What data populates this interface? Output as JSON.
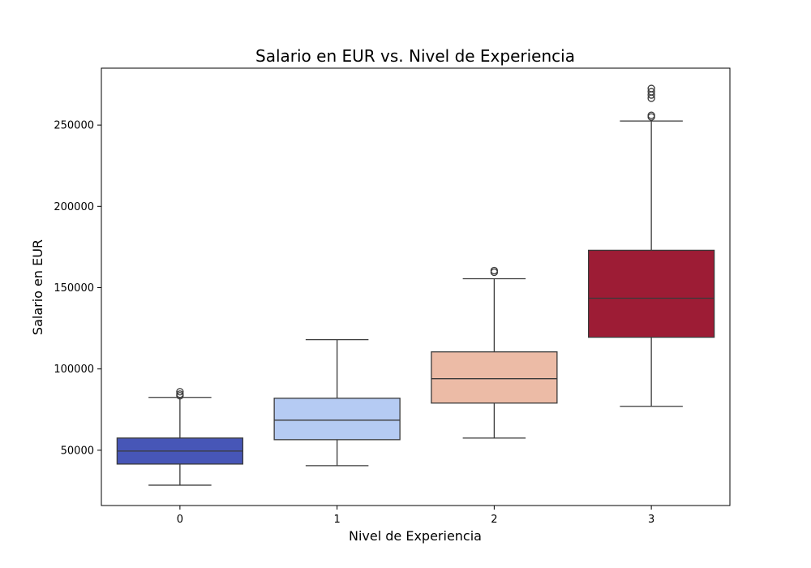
{
  "chart_data": {
    "type": "boxplot",
    "title": "Salario en EUR vs. Nivel de Experiencia",
    "xlabel": "Nivel de Experiencia",
    "ylabel": "Salario en EUR",
    "categories": [
      "0",
      "1",
      "2",
      "3"
    ],
    "ylim": [
      16000,
      285000
    ],
    "yticks": [
      50000,
      100000,
      150000,
      200000,
      250000
    ],
    "ytick_labels": [
      "50000",
      "100000",
      "150000",
      "200000",
      "250000"
    ],
    "grid": false,
    "legend": "none",
    "boxes": [
      {
        "category": "0",
        "whisker_low": 28500,
        "q1": 41500,
        "median": 49500,
        "q3": 57500,
        "whisker_high": 82500,
        "outliers": [
          83500,
          84500,
          86000
        ],
        "color": "#4756b7"
      },
      {
        "category": "1",
        "whisker_low": 40500,
        "q1": 56500,
        "median": 68500,
        "q3": 82000,
        "whisker_high": 118000,
        "outliers": [],
        "color": "#b5cbf3"
      },
      {
        "category": "2",
        "whisker_low": 57500,
        "q1": 79000,
        "median": 94000,
        "q3": 110500,
        "whisker_high": 155500,
        "outliers": [
          159500,
          160500
        ],
        "color": "#ecbba6"
      },
      {
        "category": "3",
        "whisker_low": 77000,
        "q1": 119500,
        "median": 143500,
        "q3": 173000,
        "whisker_high": 252500,
        "outliers": [
          255000,
          256000,
          266500,
          268500,
          270500,
          272500
        ],
        "color": "#9d1c35"
      }
    ]
  }
}
